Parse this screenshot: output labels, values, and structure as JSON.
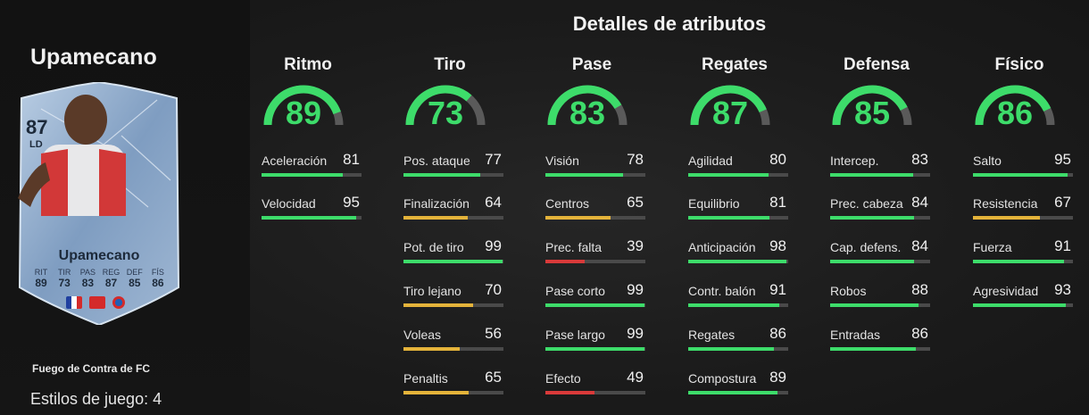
{
  "player": {
    "name": "Upamecano",
    "card_rating": "87",
    "card_position": "LD",
    "card_name": "Upamecano",
    "card_stats": [
      {
        "label": "RIT",
        "value": "89"
      },
      {
        "label": "TIR",
        "value": "73"
      },
      {
        "label": "PAS",
        "value": "83"
      },
      {
        "label": "REG",
        "value": "87"
      },
      {
        "label": "DEF",
        "value": "85"
      },
      {
        "label": "FÍS",
        "value": "86"
      }
    ],
    "version": "Fuego de Contra de FC",
    "playstyles": "Estilos de juego: 4"
  },
  "section_title": "Detalles de atributos",
  "colors": {
    "green": "#3ddc6a",
    "yellow": "#e4b33a",
    "red": "#d93a3a",
    "track": "#4a4a4a"
  },
  "categories": [
    {
      "name": "Ritmo",
      "value": 89,
      "stats": [
        {
          "label": "Aceleración",
          "value": 81,
          "color": "green"
        },
        {
          "label": "Velocidad",
          "value": 95,
          "color": "green"
        }
      ]
    },
    {
      "name": "Tiro",
      "value": 73,
      "stats": [
        {
          "label": "Pos. ataque",
          "value": 77,
          "color": "green"
        },
        {
          "label": "Finalización",
          "value": 64,
          "color": "yellow"
        },
        {
          "label": "Pot. de tiro",
          "value": 99,
          "color": "green"
        },
        {
          "label": "Tiro lejano",
          "value": 70,
          "color": "yellow"
        },
        {
          "label": "Voleas",
          "value": 56,
          "color": "yellow"
        },
        {
          "label": "Penaltis",
          "value": 65,
          "color": "yellow"
        }
      ]
    },
    {
      "name": "Pase",
      "value": 83,
      "stats": [
        {
          "label": "Visión",
          "value": 78,
          "color": "green"
        },
        {
          "label": "Centros",
          "value": 65,
          "color": "yellow"
        },
        {
          "label": "Prec. falta",
          "value": 39,
          "color": "red"
        },
        {
          "label": "Pase corto",
          "value": 99,
          "color": "green"
        },
        {
          "label": "Pase largo",
          "value": 99,
          "color": "green"
        },
        {
          "label": "Efecto",
          "value": 49,
          "color": "red"
        }
      ]
    },
    {
      "name": "Regates",
      "value": 87,
      "stats": [
        {
          "label": "Agilidad",
          "value": 80,
          "color": "green"
        },
        {
          "label": "Equilibrio",
          "value": 81,
          "color": "green"
        },
        {
          "label": "Anticipación",
          "value": 98,
          "color": "green"
        },
        {
          "label": "Contr. balón",
          "value": 91,
          "color": "green"
        },
        {
          "label": "Regates",
          "value": 86,
          "color": "green"
        },
        {
          "label": "Compostura",
          "value": 89,
          "color": "green"
        }
      ]
    },
    {
      "name": "Defensa",
      "value": 85,
      "stats": [
        {
          "label": "Intercep.",
          "value": 83,
          "color": "green"
        },
        {
          "label": "Prec. cabeza",
          "value": 84,
          "color": "green"
        },
        {
          "label": "Cap. defens.",
          "value": 84,
          "color": "green"
        },
        {
          "label": "Robos",
          "value": 88,
          "color": "green"
        },
        {
          "label": "Entradas",
          "value": 86,
          "color": "green"
        }
      ]
    },
    {
      "name": "Físico",
      "value": 86,
      "stats": [
        {
          "label": "Salto",
          "value": 95,
          "color": "green"
        },
        {
          "label": "Resistencia",
          "value": 67,
          "color": "yellow"
        },
        {
          "label": "Fuerza",
          "value": 91,
          "color": "green"
        },
        {
          "label": "Agresividad",
          "value": 93,
          "color": "green"
        }
      ]
    }
  ]
}
